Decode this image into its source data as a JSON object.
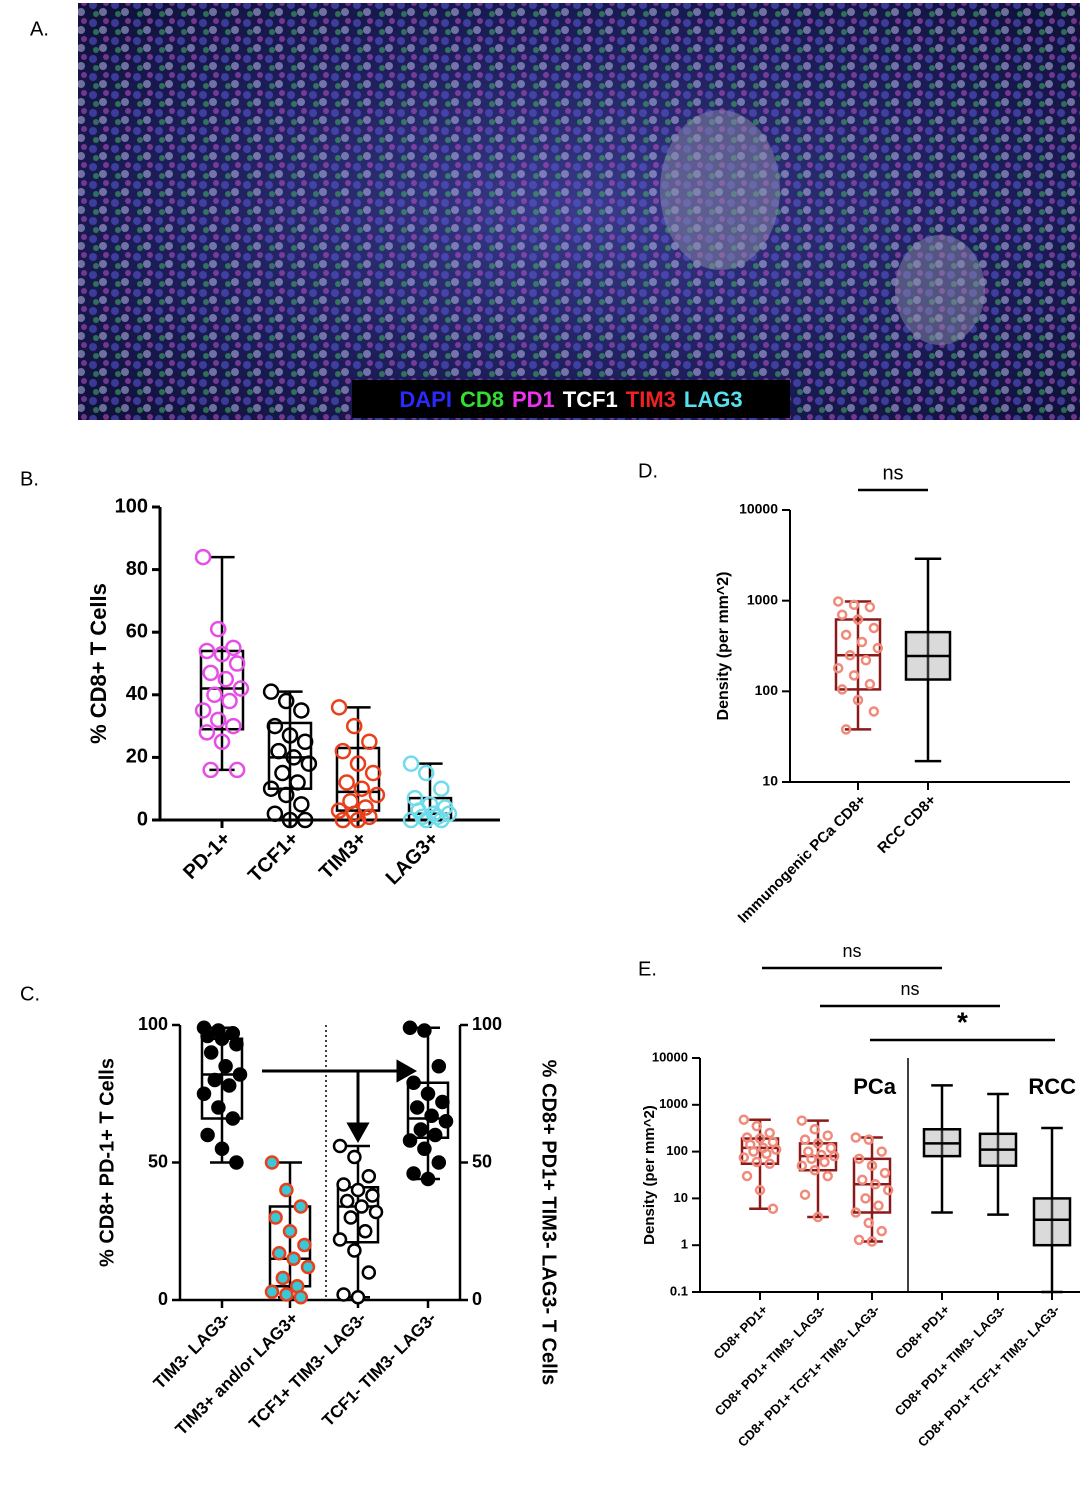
{
  "image_panel": {
    "label": "A.",
    "channels": [
      {
        "name": "DAPI",
        "color": "#2a2aff"
      },
      {
        "name": "CD8",
        "color": "#33dd33"
      },
      {
        "name": "PD1",
        "color": "#ee33ee"
      },
      {
        "name": "TCF1",
        "color": "#ffffff"
      },
      {
        "name": "TIM3",
        "color": "#ee2222"
      },
      {
        "name": "LAG3",
        "color": "#55e0ee"
      }
    ]
  },
  "chart_data": [
    {
      "type": "box",
      "panel": "B.",
      "ylabel": "% CD8+ T Cells",
      "ylim": [
        0,
        100
      ],
      "yticks": [
        0,
        20,
        40,
        60,
        80,
        100
      ],
      "categories": [
        "PD-1+",
        "TCF1+",
        "TIM3+",
        "LAG3+"
      ],
      "boxes": [
        {
          "min": 16,
          "q1": 29,
          "median": 42,
          "q3": 54,
          "max": 84,
          "color": "#e64ee6",
          "box_color": "#000000",
          "points": [
            84,
            61,
            55,
            54,
            53,
            50,
            47,
            45,
            42,
            40,
            38,
            35,
            32,
            30,
            28,
            25,
            16,
            16
          ]
        },
        {
          "min": 0,
          "q1": 10,
          "median": 20,
          "q3": 31,
          "max": 41,
          "color": "#000000",
          "box_color": "#000000",
          "points": [
            41,
            38,
            35,
            30,
            27,
            25,
            22,
            20,
            18,
            15,
            12,
            10,
            8,
            5,
            2,
            0,
            0
          ]
        },
        {
          "min": 0,
          "q1": 3,
          "median": 9,
          "q3": 23,
          "max": 36,
          "color": "#e8401c",
          "box_color": "#000000",
          "points": [
            36,
            30,
            25,
            22,
            18,
            15,
            12,
            10,
            8,
            6,
            4,
            3,
            2,
            1,
            0,
            0
          ]
        },
        {
          "min": 0,
          "q1": 0,
          "median": 2,
          "q3": 7,
          "max": 18,
          "color": "#6fdcec",
          "box_color": "#000000",
          "points": [
            18,
            15,
            10,
            7,
            5,
            4,
            3,
            2,
            2,
            1,
            1,
            0,
            0,
            0
          ]
        }
      ]
    },
    {
      "type": "box",
      "panel": "C.",
      "ylabel": "% CD8+ PD-1+ T Cells",
      "y2label": "% CD8+ PD1+ TIM3- LAG3- T Cells",
      "ylim": [
        0,
        100
      ],
      "yticks": [
        0,
        50,
        100
      ],
      "y2lim": [
        0,
        100
      ],
      "y2ticks": [
        0,
        50,
        100
      ],
      "categories": [
        "TIM3- LAG3-",
        "TIM3+ and/or LAG3+",
        "TCF1+ TIM3- LAG3-",
        "TCF1- TIM3- LAG3-"
      ],
      "boxes": [
        {
          "min": 50,
          "q1": 66,
          "median": 82,
          "q3": 95,
          "max": 99,
          "color": "#000000",
          "fill": "#000000",
          "box_color": "#000000",
          "points": [
            99,
            98,
            97,
            96,
            95,
            93,
            90,
            85,
            82,
            80,
            78,
            75,
            70,
            66,
            60,
            55,
            50
          ]
        },
        {
          "min": 1,
          "q1": 5,
          "median": 15,
          "q3": 34,
          "max": 50,
          "color": "#e8401c",
          "fill": "#38c8d8",
          "box_color": "#000000",
          "points": [
            50,
            40,
            34,
            30,
            25,
            20,
            17,
            15,
            12,
            8,
            5,
            3,
            2,
            1
          ]
        },
        {
          "axis": "y2",
          "min": 1,
          "q1": 21,
          "median": 34,
          "q3": 41,
          "max": 56,
          "color": "#000000",
          "fill": "#ffffff",
          "box_color": "#000000",
          "points": [
            56,
            52,
            45,
            42,
            40,
            38,
            36,
            34,
            32,
            30,
            25,
            22,
            18,
            10,
            2,
            1
          ]
        },
        {
          "axis": "y2",
          "min": 44,
          "q1": 59,
          "median": 66,
          "q3": 79,
          "max": 99,
          "color": "#000000",
          "fill": "#000000",
          "box_color": "#000000",
          "points": [
            99,
            98,
            85,
            79,
            75,
            72,
            70,
            67,
            65,
            62,
            60,
            58,
            55,
            50,
            46,
            44
          ]
        }
      ]
    },
    {
      "type": "box",
      "panel": "D.",
      "ylabel": "Density (per mm^2)",
      "log_scale": true,
      "ylim": [
        10,
        10000
      ],
      "yticks": [
        10,
        100,
        1000,
        10000
      ],
      "categories": [
        "Immunogenic PCa CD8+",
        "RCC CD8+"
      ],
      "annotations": [
        "ns"
      ],
      "boxes": [
        {
          "min": 38,
          "q1": 105,
          "median": 250,
          "q3": 620,
          "max": 980,
          "color": "#f08a7a",
          "box_color": "#8b1a1a",
          "points": [
            980,
            900,
            850,
            700,
            620,
            500,
            420,
            350,
            300,
            250,
            220,
            180,
            150,
            120,
            105,
            80,
            60,
            38
          ]
        },
        {
          "min": 17,
          "q1": 135,
          "median": 245,
          "q3": 450,
          "max": 2900,
          "color": "#999999",
          "box_color": "#000000"
        }
      ]
    },
    {
      "type": "box",
      "panel": "E.",
      "ylabel": "Density (per mm^2)",
      "log_scale": true,
      "ylim": [
        0.1,
        10000
      ],
      "yticks": [
        0.1,
        1,
        10,
        100,
        1000,
        10000
      ],
      "categories": [
        "CD8+ PD1+",
        "CD8+ PD1+ TIM3- LAG3-",
        "CD8+ PD1+ TCF1+ TIM3- LAG3-",
        "CD8+ PD1+",
        "CD8+ PD1+ TIM3- LAG3-",
        "CD8+ PD1+ TCF1+ TIM3- LAG3-"
      ],
      "group_labels": [
        "PCa",
        "RCC"
      ],
      "annotations": [
        "ns",
        "ns",
        "*"
      ],
      "boxes": [
        {
          "min": 6,
          "q1": 55,
          "median": 120,
          "q3": 190,
          "max": 480,
          "color": "#f08a7a",
          "box_color": "#8b1a1a",
          "points": [
            480,
            350,
            250,
            200,
            190,
            160,
            140,
            120,
            110,
            100,
            90,
            75,
            60,
            55,
            30,
            15,
            6
          ]
        },
        {
          "min": 4,
          "q1": 40,
          "median": 80,
          "q3": 150,
          "max": 460,
          "color": "#f08a7a",
          "box_color": "#8b1a1a",
          "points": [
            460,
            300,
            220,
            180,
            150,
            120,
            100,
            85,
            80,
            70,
            60,
            50,
            40,
            30,
            12,
            4
          ]
        },
        {
          "min": 1.2,
          "q1": 5,
          "median": 20,
          "q3": 70,
          "max": 200,
          "color": "#f08a7a",
          "box_color": "#8b1a1a",
          "points": [
            200,
            180,
            100,
            70,
            50,
            35,
            25,
            20,
            15,
            10,
            7,
            5,
            3,
            2,
            1.3,
            1.2
          ]
        },
        {
          "min": 5,
          "q1": 80,
          "median": 150,
          "q3": 300,
          "max": 2600,
          "color": "#999999",
          "box_color": "#000000"
        },
        {
          "min": 4.5,
          "q1": 50,
          "median": 110,
          "q3": 240,
          "max": 1700,
          "color": "#999999",
          "box_color": "#000000"
        },
        {
          "min": 0.1,
          "q1": 1,
          "median": 3.5,
          "q3": 10,
          "max": 320,
          "color": "#999999",
          "box_color": "#000000"
        }
      ]
    }
  ]
}
